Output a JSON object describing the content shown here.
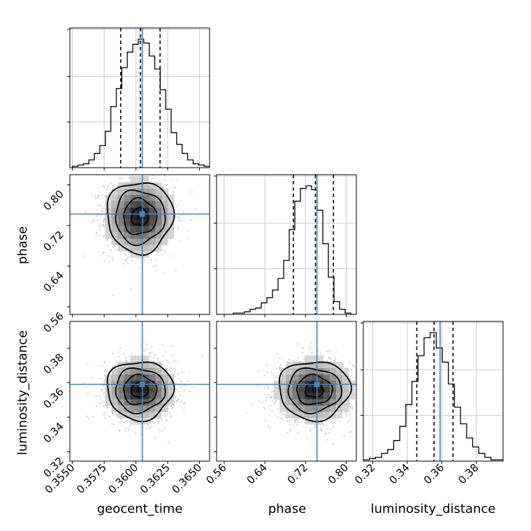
{
  "chart_data": {
    "type": "corner",
    "parameters": [
      "geocent_time",
      "phase",
      "luminosity_distance"
    ],
    "colors": {
      "truth": "#4682b4",
      "histogram": "#000000",
      "grid": "#c8c8c8",
      "points": "#9a9a9a",
      "quantile": "#000000"
    },
    "ranges": {
      "geocent_time": [
        0.3548,
        0.3658
      ],
      "phase": [
        0.545,
        0.82
      ],
      "luminosity_distance": [
        0.3145,
        0.3955
      ]
    },
    "ticks": {
      "geocent_time": {
        "values": [
          0.355,
          0.3575,
          0.36,
          0.3625,
          0.365
        ],
        "labels": [
          "0.3550",
          "0.3575",
          "0.3600",
          "0.3625",
          "0.3650"
        ]
      },
      "phase": {
        "values": [
          0.56,
          0.64,
          0.72,
          0.8
        ],
        "labels": [
          "0.56",
          "0.64",
          "0.72",
          "0.80"
        ]
      },
      "luminosity_distance": {
        "values": [
          0.32,
          0.34,
          0.36,
          0.38
        ],
        "labels": [
          "0.32",
          "0.34",
          "0.36",
          "0.38"
        ]
      }
    },
    "truths": {
      "geocent_time": 0.3605,
      "phase": 0.7425,
      "luminosity_distance": 0.359
    },
    "quantiles": {
      "geocent_time": [
        0.3588,
        0.36035,
        0.3619
      ],
      "phase": [
        0.696,
        0.7395,
        0.775
      ],
      "luminosity_distance": [
        0.3455,
        0.3555,
        0.3665
      ]
    },
    "histograms": {
      "geocent_time": {
        "range": [
          0.355,
          0.3658
        ],
        "counts": [
          1,
          2,
          3,
          6,
          11,
          17,
          28,
          47,
          61,
          77,
          89,
          95,
          99,
          96,
          86,
          76,
          60,
          45,
          27,
          18,
          11,
          6,
          3,
          2,
          1
        ]
      },
      "phase": {
        "range": [
          0.545,
          0.82
        ],
        "counts": [
          0,
          0,
          0,
          1,
          1,
          2,
          4,
          5,
          9,
          13,
          19,
          28,
          42,
          66,
          88,
          98,
          100,
          97,
          81,
          55,
          29,
          10,
          4,
          1,
          0
        ]
      },
      "luminosity_distance": {
        "range": [
          0.3145,
          0.3955
        ],
        "counts": [
          1,
          2,
          3,
          6,
          9,
          16,
          27,
          44,
          62,
          82,
          96,
          100,
          88,
          77,
          60,
          42,
          29,
          18,
          11,
          6,
          3,
          1,
          1
        ]
      }
    },
    "contour_scale": {
      "geocent_time": [
        0.3603,
        0.0013
      ],
      "phase": [
        0.737,
        0.035
      ],
      "luminosity_distance": [
        0.3557,
        0.0085
      ]
    },
    "axis_labels": {
      "geocent_time": "geocent_time",
      "phase": "phase",
      "luminosity_distance": "luminosity_distance"
    }
  }
}
